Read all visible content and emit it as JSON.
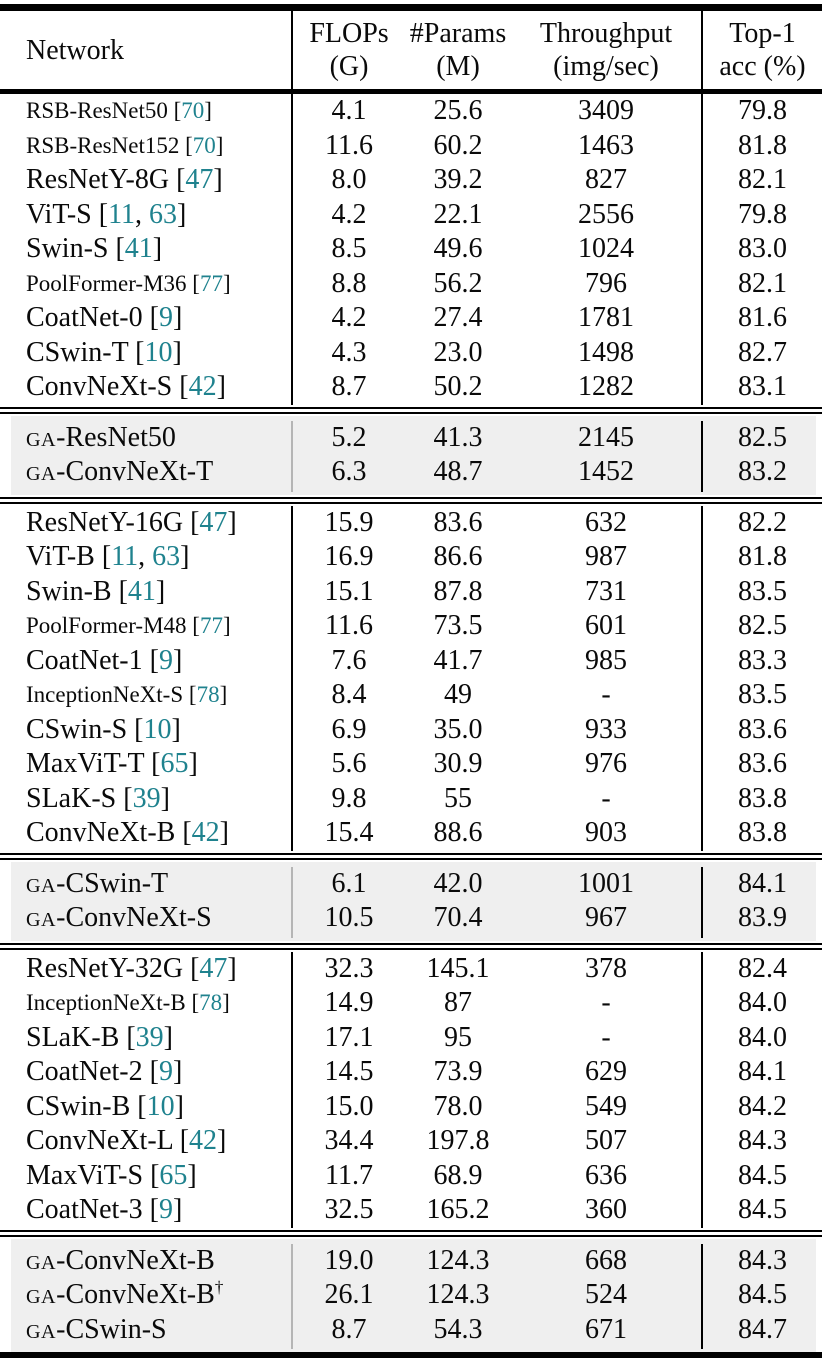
{
  "table": {
    "colors": {
      "citation": "#1f828e",
      "highlight": "#efefef",
      "rule": "#000000",
      "text": "#0a0a0a"
    },
    "columns": [
      {
        "label": "Network",
        "sub": ""
      },
      {
        "label": "FLOPs",
        "sub": "(G)"
      },
      {
        "label": "#Params",
        "sub": "(M)"
      },
      {
        "label": "Throughput",
        "sub": "(img/sec)"
      },
      {
        "label": "Top-1",
        "sub": "acc (%)"
      }
    ],
    "sections": [
      {
        "highlight": false,
        "rows": [
          {
            "name": "RSB-ResNet50",
            "cite": "[70]",
            "flops": "4.1",
            "params": "25.6",
            "thr": "3409",
            "top1": "79.8"
          },
          {
            "name": "RSB-ResNet152",
            "cite": "[70]",
            "flops": "11.6",
            "params": "60.2",
            "thr": "1463",
            "top1": "81.8"
          },
          {
            "name": "ResNetY-8G",
            "cite": "[47]",
            "flops": "8.0",
            "params": "39.2",
            "thr": "827",
            "top1": "82.1"
          },
          {
            "name": "ViT-S",
            "cite": "[11, 63]",
            "flops": "4.2",
            "params": "22.1",
            "thr": "2556",
            "top1": "79.8"
          },
          {
            "name": "Swin-S",
            "cite": "[41]",
            "flops": "8.5",
            "params": "49.6",
            "thr": "1024",
            "top1": "83.0"
          },
          {
            "name": "PoolFormer-M36",
            "cite": "[77]",
            "flops": "8.8",
            "params": "56.2",
            "thr": "796",
            "top1": "82.1"
          },
          {
            "name": "CoatNet-0",
            "cite": "[9]",
            "flops": "4.2",
            "params": "27.4",
            "thr": "1781",
            "top1": "81.6"
          },
          {
            "name": "CSwin-T",
            "cite": "[10]",
            "flops": "4.3",
            "params": "23.0",
            "thr": "1498",
            "top1": "82.7"
          },
          {
            "name": "ConvNeXt-S",
            "cite": "[42]",
            "flops": "8.7",
            "params": "50.2",
            "thr": "1282",
            "top1": "83.1"
          }
        ]
      },
      {
        "highlight": true,
        "rows": [
          {
            "name": "GA-ResNet50",
            "cite": "",
            "flops": "5.2",
            "params": "41.3",
            "thr": "2145",
            "top1": "82.5"
          },
          {
            "name": "GA-ConvNeXt-T",
            "cite": "",
            "flops": "6.3",
            "params": "48.7",
            "thr": "1452",
            "top1": "83.2"
          }
        ]
      },
      {
        "highlight": false,
        "rows": [
          {
            "name": "ResNetY-16G",
            "cite": "[47]",
            "flops": "15.9",
            "params": "83.6",
            "thr": "632",
            "top1": "82.2"
          },
          {
            "name": "ViT-B",
            "cite": "[11, 63]",
            "flops": "16.9",
            "params": "86.6",
            "thr": "987",
            "top1": "81.8"
          },
          {
            "name": "Swin-B",
            "cite": "[41]",
            "flops": "15.1",
            "params": "87.8",
            "thr": "731",
            "top1": "83.5"
          },
          {
            "name": "PoolFormer-M48",
            "cite": "[77]",
            "flops": "11.6",
            "params": "73.5",
            "thr": "601",
            "top1": "82.5"
          },
          {
            "name": "CoatNet-1",
            "cite": "[9]",
            "flops": "7.6",
            "params": "41.7",
            "thr": "985",
            "top1": "83.3"
          },
          {
            "name": "InceptionNeXt-S",
            "cite": "[78]",
            "flops": "8.4",
            "params": "49",
            "thr": "-",
            "top1": "83.5"
          },
          {
            "name": "CSwin-S",
            "cite": "[10]",
            "flops": "6.9",
            "params": "35.0",
            "thr": "933",
            "top1": "83.6"
          },
          {
            "name": "MaxViT-T",
            "cite": "[65]",
            "flops": "5.6",
            "params": "30.9",
            "thr": "976",
            "top1": "83.6"
          },
          {
            "name": "SLaK-S",
            "cite": "[39]",
            "flops": "9.8",
            "params": "55",
            "thr": "-",
            "top1": "83.8"
          },
          {
            "name": "ConvNeXt-B",
            "cite": "[42]",
            "flops": "15.4",
            "params": "88.6",
            "thr": "903",
            "top1": "83.8"
          }
        ]
      },
      {
        "highlight": true,
        "rows": [
          {
            "name": "GA-CSwin-T",
            "cite": "",
            "flops": "6.1",
            "params": "42.0",
            "thr": "1001",
            "top1": "84.1"
          },
          {
            "name": "GA-ConvNeXt-S",
            "cite": "",
            "flops": "10.5",
            "params": "70.4",
            "thr": "967",
            "top1": "83.9"
          }
        ]
      },
      {
        "highlight": false,
        "rows": [
          {
            "name": "ResNetY-32G",
            "cite": "[47]",
            "flops": "32.3",
            "params": "145.1",
            "thr": "378",
            "top1": "82.4"
          },
          {
            "name": "InceptionNeXt-B",
            "cite": "[78]",
            "flops": "14.9",
            "params": "87",
            "thr": "-",
            "top1": "84.0"
          },
          {
            "name": "SLaK-B",
            "cite": "[39]",
            "flops": "17.1",
            "params": "95",
            "thr": "-",
            "top1": "84.0"
          },
          {
            "name": "CoatNet-2",
            "cite": "[9]",
            "flops": "14.5",
            "params": "73.9",
            "thr": "629",
            "top1": "84.1"
          },
          {
            "name": "CSwin-B",
            "cite": "[10]",
            "flops": "15.0",
            "params": "78.0",
            "thr": "549",
            "top1": "84.2"
          },
          {
            "name": "ConvNeXt-L",
            "cite": "[42]",
            "flops": "34.4",
            "params": "197.8",
            "thr": "507",
            "top1": "84.3"
          },
          {
            "name": "MaxViT-S",
            "cite": "[65]",
            "flops": "11.7",
            "params": "68.9",
            "thr": "636",
            "top1": "84.5"
          },
          {
            "name": "CoatNet-3",
            "cite": "[9]",
            "flops": "32.5",
            "params": "165.2",
            "thr": "360",
            "top1": "84.5"
          }
        ]
      },
      {
        "highlight": true,
        "rows": [
          {
            "name": "GA-ConvNeXt-B",
            "cite": "",
            "flops": "19.0",
            "params": "124.3",
            "thr": "668",
            "top1": "84.3"
          },
          {
            "name": "GA-ConvNeXt-B",
            "cite": "",
            "dagger": true,
            "flops": "26.1",
            "params": "124.3",
            "thr": "524",
            "top1": "84.5"
          },
          {
            "name": "GA-CSwin-S",
            "cite": "",
            "flops": "8.7",
            "params": "54.3",
            "thr": "671",
            "top1": "84.7"
          }
        ]
      }
    ]
  }
}
